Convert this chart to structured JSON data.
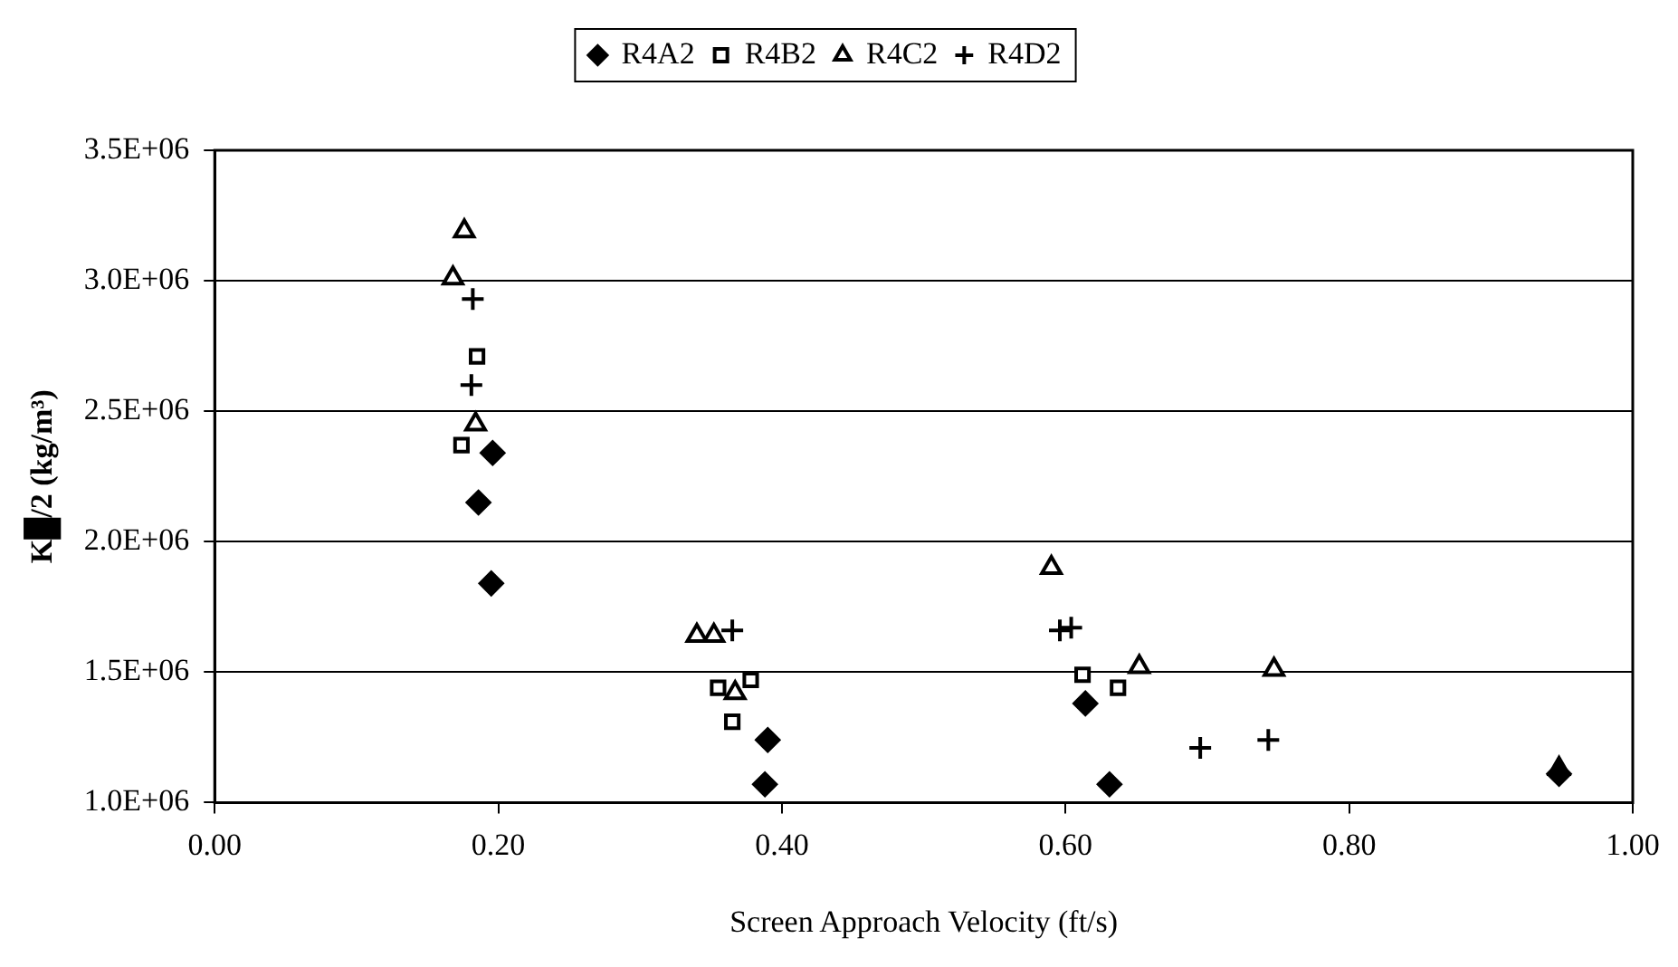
{
  "chart_data": {
    "type": "scatter",
    "xlabel": "Screen Approach Velocity (ft/s)",
    "ylabel": "K█/2 (kg/m³)",
    "xlim": [
      0,
      1
    ],
    "xticks": [
      {
        "value": 0,
        "label": "0.00"
      },
      {
        "value": 0.2,
        "label": "0.20"
      },
      {
        "value": 0.4,
        "label": "0.40"
      },
      {
        "value": 0.6,
        "label": "0.60"
      },
      {
        "value": 0.8,
        "label": "0.80"
      },
      {
        "value": 1,
        "label": "1.00"
      }
    ],
    "ylim": [
      1000000,
      3500000
    ],
    "yticks": [
      {
        "value": 1000000,
        "label": "1.0E+06"
      },
      {
        "value": 1500000,
        "label": "1.5E+06"
      },
      {
        "value": 2000000,
        "label": "2.0E+06"
      },
      {
        "value": 2500000,
        "label": "2.5E+06"
      },
      {
        "value": 3000000,
        "label": "3.0E+06"
      },
      {
        "value": 3500000,
        "label": "3.5E+06"
      }
    ],
    "grid": "y",
    "legend": "top",
    "series": [
      {
        "name": "R4A2",
        "color": "#000000",
        "marker": "diamond",
        "x": [
          0.196,
          0.186,
          0.195,
          0.39,
          0.388,
          0.614,
          0.631,
          0.948
        ],
        "values": [
          2340000,
          2150000,
          1840000,
          1240000,
          1070000,
          1380000,
          1070000,
          1110000
        ]
      },
      {
        "name": "R4B2",
        "color": "#000000",
        "marker": "square",
        "x": [
          0.185,
          0.174,
          0.355,
          0.378,
          0.365,
          0.612,
          0.637
        ],
        "values": [
          2710000,
          2370000,
          1440000,
          1470000,
          1310000,
          1490000,
          1440000
        ]
      },
      {
        "name": "R4C2",
        "color": "#000000",
        "marker": "triangle",
        "x": [
          0.176,
          0.168,
          0.184,
          0.34,
          0.352,
          0.367,
          0.59,
          0.652,
          0.747,
          0.948
        ],
        "values": [
          3190000,
          3010000,
          2450000,
          1640000,
          1640000,
          1420000,
          1900000,
          1520000,
          1510000,
          1130000
        ]
      },
      {
        "name": "R4D2",
        "color": "#000000",
        "marker": "cross",
        "x": [
          0.182,
          0.181,
          0.365,
          0.596,
          0.604,
          0.695,
          0.743
        ],
        "values": [
          2930000,
          2600000,
          1660000,
          1660000,
          1670000,
          1210000,
          1240000
        ]
      }
    ]
  }
}
